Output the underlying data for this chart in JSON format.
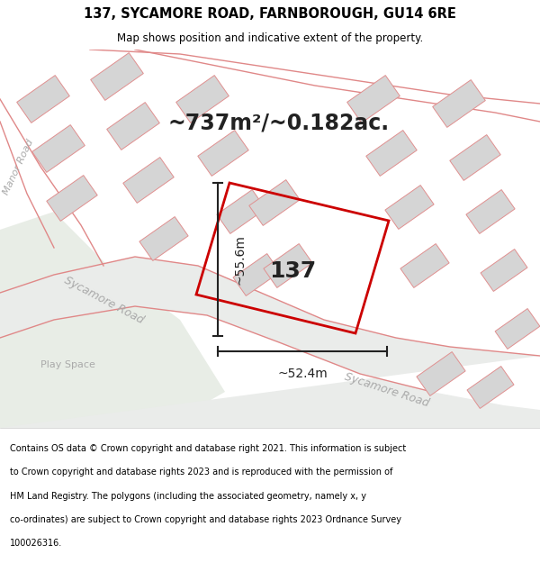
{
  "title_line1": "137, SYCAMORE ROAD, FARNBOROUGH, GU14 6RE",
  "title_line2": "Map shows position and indicative extent of the property.",
  "area_text": "~737m²/~0.182ac.",
  "width_label": "~52.4m",
  "height_label": "~55.6m",
  "property_number": "137",
  "footer_lines": [
    "Contains OS data © Crown copyright and database right 2021. This information is subject",
    "to Crown copyright and database rights 2023 and is reproduced with the permission of",
    "HM Land Registry. The polygons (including the associated geometry, namely x, y",
    "co-ordinates) are subject to Crown copyright and database rights 2023 Ordnance Survey",
    "100026316."
  ],
  "map_bg": "#f7f7f5",
  "play_space_color": "#e8ede6",
  "road_color": "#eaecea",
  "plot_color": "#cc0000",
  "road_line_color": "#e08888",
  "building_fill": "#d5d5d5",
  "building_edge": "#e09090",
  "measure_color": "#222222",
  "text_color": "#222222",
  "road_text_color": "#aaaaaa",
  "playspace_text_color": "#aaaaaa"
}
